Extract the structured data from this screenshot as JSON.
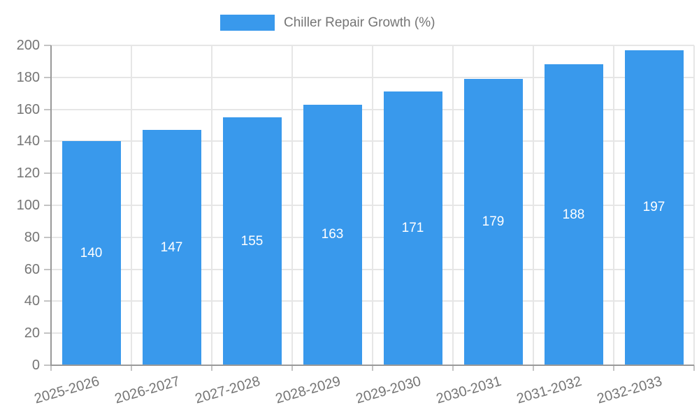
{
  "legend": {
    "label": "Chiller Repair Growth (%)"
  },
  "colors": {
    "background": "#ffffff",
    "bar": "#3999ec",
    "grid": "#e6e6e6",
    "axis": "#999999",
    "tick": "#c4c4c4",
    "text": "#757575",
    "value_label": "#ffffff"
  },
  "chart_data": {
    "type": "bar",
    "title": "Chiller Repair Growth (%)",
    "categories": [
      "2025-2026",
      "2026-2027",
      "2027-2028",
      "2028-2029",
      "2029-2030",
      "2030-2031",
      "2031-2032",
      "2032-2033"
    ],
    "values": [
      140,
      147,
      155,
      163,
      171,
      179,
      188,
      197
    ],
    "xlabel": "",
    "ylabel": "",
    "ylim": [
      0,
      200
    ],
    "yticks": [
      0,
      20,
      40,
      60,
      80,
      100,
      120,
      140,
      160,
      180,
      200
    ],
    "grid": true,
    "legend_position": "top-center",
    "value_labels_position": "inside-middle",
    "x_label_rotation_deg": -16
  }
}
